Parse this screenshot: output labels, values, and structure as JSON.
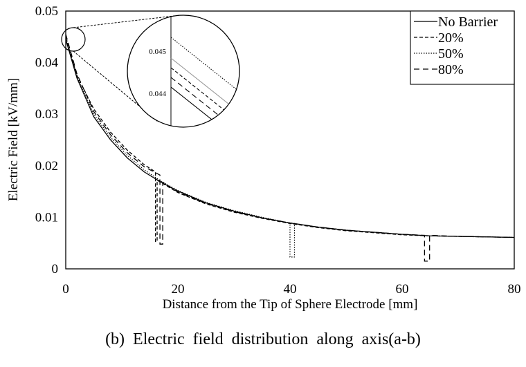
{
  "caption": "(b) Electric field distribution along axis(a-b)",
  "chart_data": {
    "type": "line",
    "xlabel": "Distance from the Tip of Sphere Electrode [mm]",
    "ylabel": "Electric Field [kV/mm]",
    "xlim": [
      0,
      80
    ],
    "ylim": [
      0,
      0.05
    ],
    "xticks": [
      "0",
      "20",
      "40",
      "60",
      "80"
    ],
    "yticks": [
      "0",
      "0.01",
      "0.02",
      "0.03",
      "0.04",
      "0.05"
    ],
    "grid": false,
    "legend_position": "top-right",
    "series": [
      {
        "name": "No Barrier",
        "style": "solid",
        "x": [
          0,
          2,
          5,
          8,
          11,
          14,
          17,
          20,
          25,
          30,
          35,
          40,
          45,
          50,
          55,
          60,
          65,
          70,
          75,
          80
        ],
        "y": [
          0.0445,
          0.037,
          0.0295,
          0.025,
          0.0215,
          0.0188,
          0.0168,
          0.0151,
          0.0128,
          0.0112,
          0.0099,
          0.0089,
          0.0081,
          0.0075,
          0.0071,
          0.0067,
          0.0064,
          0.0063,
          0.0062,
          0.0061
        ]
      },
      {
        "name": "20%",
        "style": "dashed",
        "x": [
          0,
          2,
          5,
          8,
          11,
          14,
          16.0,
          16.0,
          16.3,
          16.3,
          20,
          25,
          30,
          35,
          40,
          45,
          50,
          55,
          60,
          65,
          70,
          75,
          80
        ],
        "y": [
          0.0448,
          0.0375,
          0.031,
          0.0265,
          0.023,
          0.0202,
          0.0188,
          0.0053,
          0.0053,
          0.0172,
          0.0148,
          0.0126,
          0.011,
          0.0098,
          0.0088,
          0.008,
          0.0074,
          0.007,
          0.0066,
          0.0064,
          0.0063,
          0.0062,
          0.0061
        ]
      },
      {
        "name": "50%",
        "style": "dotted",
        "x": [
          0,
          2,
          5,
          8,
          11,
          14,
          17,
          20,
          25,
          30,
          35,
          40.0,
          40.0,
          40.8,
          40.8,
          45,
          50,
          55,
          60,
          65,
          70,
          75,
          80
        ],
        "y": [
          0.0452,
          0.0372,
          0.03,
          0.0255,
          0.022,
          0.0192,
          0.017,
          0.0152,
          0.0129,
          0.0113,
          0.01,
          0.0089,
          0.0023,
          0.0023,
          0.0088,
          0.0081,
          0.0075,
          0.0071,
          0.0067,
          0.0064,
          0.0063,
          0.0062,
          0.0061
        ]
      },
      {
        "name": "80%",
        "style": "longdash",
        "x": [
          0,
          2,
          5,
          8,
          11,
          14,
          16.8,
          16.8,
          17.3,
          17.3,
          20,
          25,
          30,
          35,
          40,
          45,
          50,
          55,
          60,
          64.0,
          64.0,
          64.9,
          64.9,
          70,
          75,
          80
        ],
        "y": [
          0.0455,
          0.0378,
          0.0305,
          0.026,
          0.0225,
          0.0198,
          0.0182,
          0.0048,
          0.0048,
          0.0168,
          0.0149,
          0.0127,
          0.0111,
          0.0099,
          0.0089,
          0.0081,
          0.0075,
          0.0071,
          0.0067,
          0.0065,
          0.0015,
          0.0015,
          0.0065,
          0.0063,
          0.0062,
          0.0061
        ]
      }
    ],
    "inset": {
      "ticks": [
        "0.045",
        "0.044"
      ]
    }
  }
}
